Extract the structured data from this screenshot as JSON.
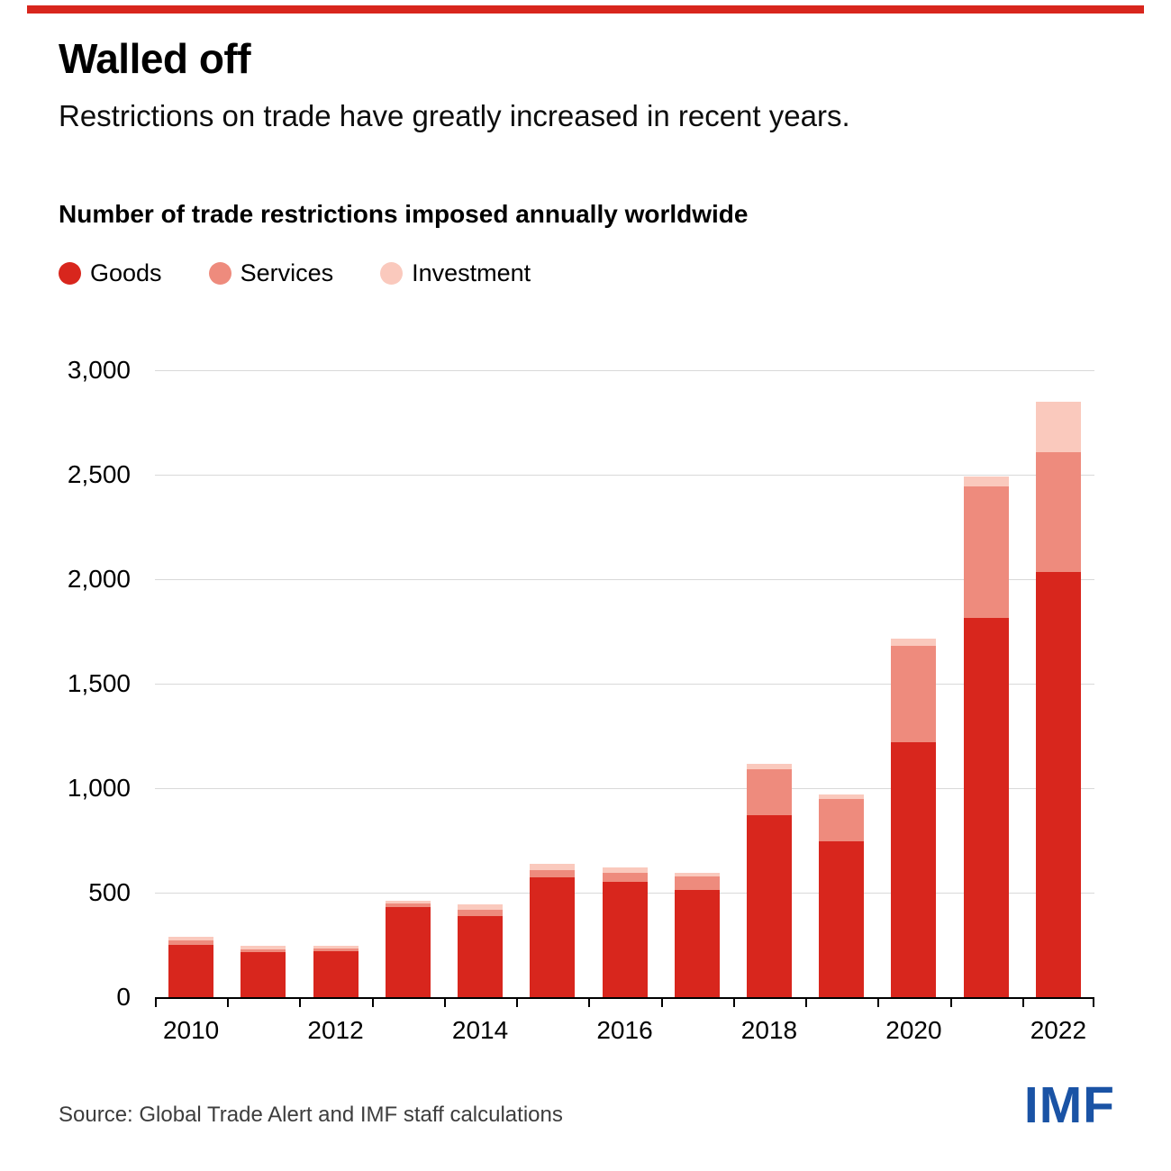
{
  "page": {
    "title": "Walled off",
    "subtitle": "Restrictions on trade have greatly increased in recent years.",
    "chart_heading": "Number of trade restrictions imposed annually worldwide",
    "source": "Source: Global Trade Alert and IMF staff calculations",
    "logo": "IMF",
    "accent_color": "#d8261d",
    "logo_color": "#1a53a5"
  },
  "legend": [
    {
      "label": "Goods",
      "color": "#d8261d"
    },
    {
      "label": "Services",
      "color": "#ee8b7d"
    },
    {
      "label": "Investment",
      "color": "#fac9bd"
    }
  ],
  "chart_data": {
    "type": "bar",
    "stacked": true,
    "title": "Number of trade restrictions imposed annually worldwide",
    "categories": [
      2010,
      2011,
      2012,
      2013,
      2014,
      2015,
      2016,
      2017,
      2018,
      2019,
      2020,
      2021,
      2022
    ],
    "series": [
      {
        "name": "Goods",
        "color": "#d8261d",
        "values": [
          250,
          215,
          218,
          430,
          390,
          575,
          550,
          515,
          870,
          745,
          1220,
          1815,
          2035
        ]
      },
      {
        "name": "Services",
        "color": "#ee8b7d",
        "values": [
          20,
          15,
          15,
          17,
          27,
          35,
          47,
          62,
          220,
          205,
          460,
          630,
          575
        ]
      },
      {
        "name": "Investment",
        "color": "#fac9bd",
        "values": [
          18,
          14,
          14,
          15,
          26,
          30,
          25,
          18,
          25,
          18,
          35,
          45,
          240
        ]
      }
    ],
    "xlabel": "",
    "ylabel": "",
    "ylim": [
      0,
      3000
    ],
    "yticks": [
      {
        "value": 0,
        "label": "0"
      },
      {
        "value": 500,
        "label": "500"
      },
      {
        "value": 1000,
        "label": "1,000"
      },
      {
        "value": 1500,
        "label": "1,500"
      },
      {
        "value": 2000,
        "label": "2,000"
      },
      {
        "value": 2500,
        "label": "2,500"
      },
      {
        "value": 3000,
        "label": "3,000"
      }
    ],
    "xtick_labels": [
      "2010",
      "2012",
      "2014",
      "2016",
      "2018",
      "2020",
      "2022"
    ],
    "xtick_every_other_starting_index": 0,
    "grid": "horizontal",
    "legend_position": "top"
  }
}
